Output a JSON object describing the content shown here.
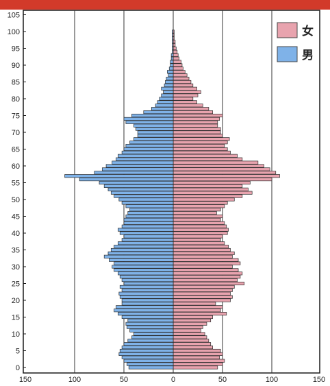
{
  "chart_data": {
    "type": "bar",
    "orientation": "horizontal",
    "title": "",
    "xlabel": "",
    "ylabel": "",
    "y_ticks": [
      "0",
      "5",
      "10",
      "15",
      "20",
      "25",
      "30",
      "35",
      "40",
      "45",
      "50",
      "55",
      "60",
      "65",
      "70",
      "75",
      "80",
      "85",
      "90",
      "95",
      "100",
      "105"
    ],
    "x_ticks": [
      "150",
      "100",
      "50",
      "0",
      "50",
      "100",
      "150"
    ],
    "xlim": [
      -150,
      150
    ],
    "ylim": [
      0,
      105
    ],
    "grid": "vertical lines at 100, 50, 0, 50, 100",
    "legend_position": "top-right",
    "colors": {
      "female": "#e8a3ae",
      "male": "#7fb2e8",
      "frame": "#1a1a1a",
      "top_strip": "#d23a2a"
    },
    "ages": [
      0,
      1,
      2,
      3,
      4,
      5,
      6,
      7,
      8,
      9,
      10,
      11,
      12,
      13,
      14,
      15,
      16,
      17,
      18,
      19,
      20,
      21,
      22,
      23,
      24,
      25,
      26,
      27,
      28,
      29,
      30,
      31,
      32,
      33,
      34,
      35,
      36,
      37,
      38,
      39,
      40,
      41,
      42,
      43,
      44,
      45,
      46,
      47,
      48,
      49,
      50,
      51,
      52,
      53,
      54,
      55,
      56,
      57,
      58,
      59,
      60,
      61,
      62,
      63,
      64,
      65,
      66,
      67,
      68,
      69,
      70,
      71,
      72,
      73,
      74,
      75,
      76,
      77,
      78,
      79,
      80,
      81,
      82,
      83,
      84,
      85,
      86,
      87,
      88,
      89,
      90,
      91,
      92,
      93,
      94,
      95,
      96,
      97,
      98,
      99,
      100
    ],
    "series": [
      {
        "name": "女",
        "values": [
          45,
          50,
          52,
          47,
          50,
          48,
          40,
          38,
          36,
          34,
          32,
          28,
          30,
          34,
          38,
          40,
          54,
          48,
          50,
          43,
          58,
          60,
          58,
          60,
          62,
          72,
          65,
          68,
          70,
          66,
          60,
          68,
          66,
          60,
          62,
          58,
          56,
          52,
          48,
          50,
          55,
          56,
          54,
          52,
          48,
          50,
          44,
          48,
          52,
          55,
          62,
          70,
          80,
          76,
          70,
          78,
          100,
          108,
          104,
          98,
          92,
          86,
          70,
          65,
          58,
          55,
          52,
          55,
          57,
          50,
          48,
          48,
          45,
          45,
          47,
          50,
          40,
          36,
          30,
          24,
          20,
          25,
          28,
          24,
          20,
          18,
          16,
          14,
          12,
          10,
          9,
          8,
          6,
          5,
          4,
          3,
          2,
          2,
          1,
          1,
          1
        ]
      },
      {
        "name": "男",
        "values": [
          45,
          47,
          50,
          52,
          55,
          54,
          52,
          50,
          46,
          42,
          40,
          44,
          47,
          48,
          46,
          52,
          56,
          60,
          58,
          52,
          52,
          54,
          55,
          52,
          54,
          50,
          52,
          54,
          56,
          60,
          62,
          60,
          65,
          70,
          66,
          63,
          60,
          56,
          52,
          50,
          54,
          56,
          52,
          50,
          50,
          48,
          46,
          44,
          48,
          52,
          55,
          60,
          63,
          66,
          70,
          75,
          95,
          110,
          80,
          72,
          68,
          62,
          58,
          56,
          52,
          50,
          48,
          44,
          40,
          36,
          36,
          38,
          40,
          48,
          50,
          42,
          30,
          22,
          18,
          16,
          14,
          12,
          10,
          12,
          9,
          8,
          7,
          5,
          6,
          4,
          3,
          3,
          2,
          2,
          1,
          1,
          1,
          1,
          1,
          1,
          1
        ]
      }
    ]
  }
}
